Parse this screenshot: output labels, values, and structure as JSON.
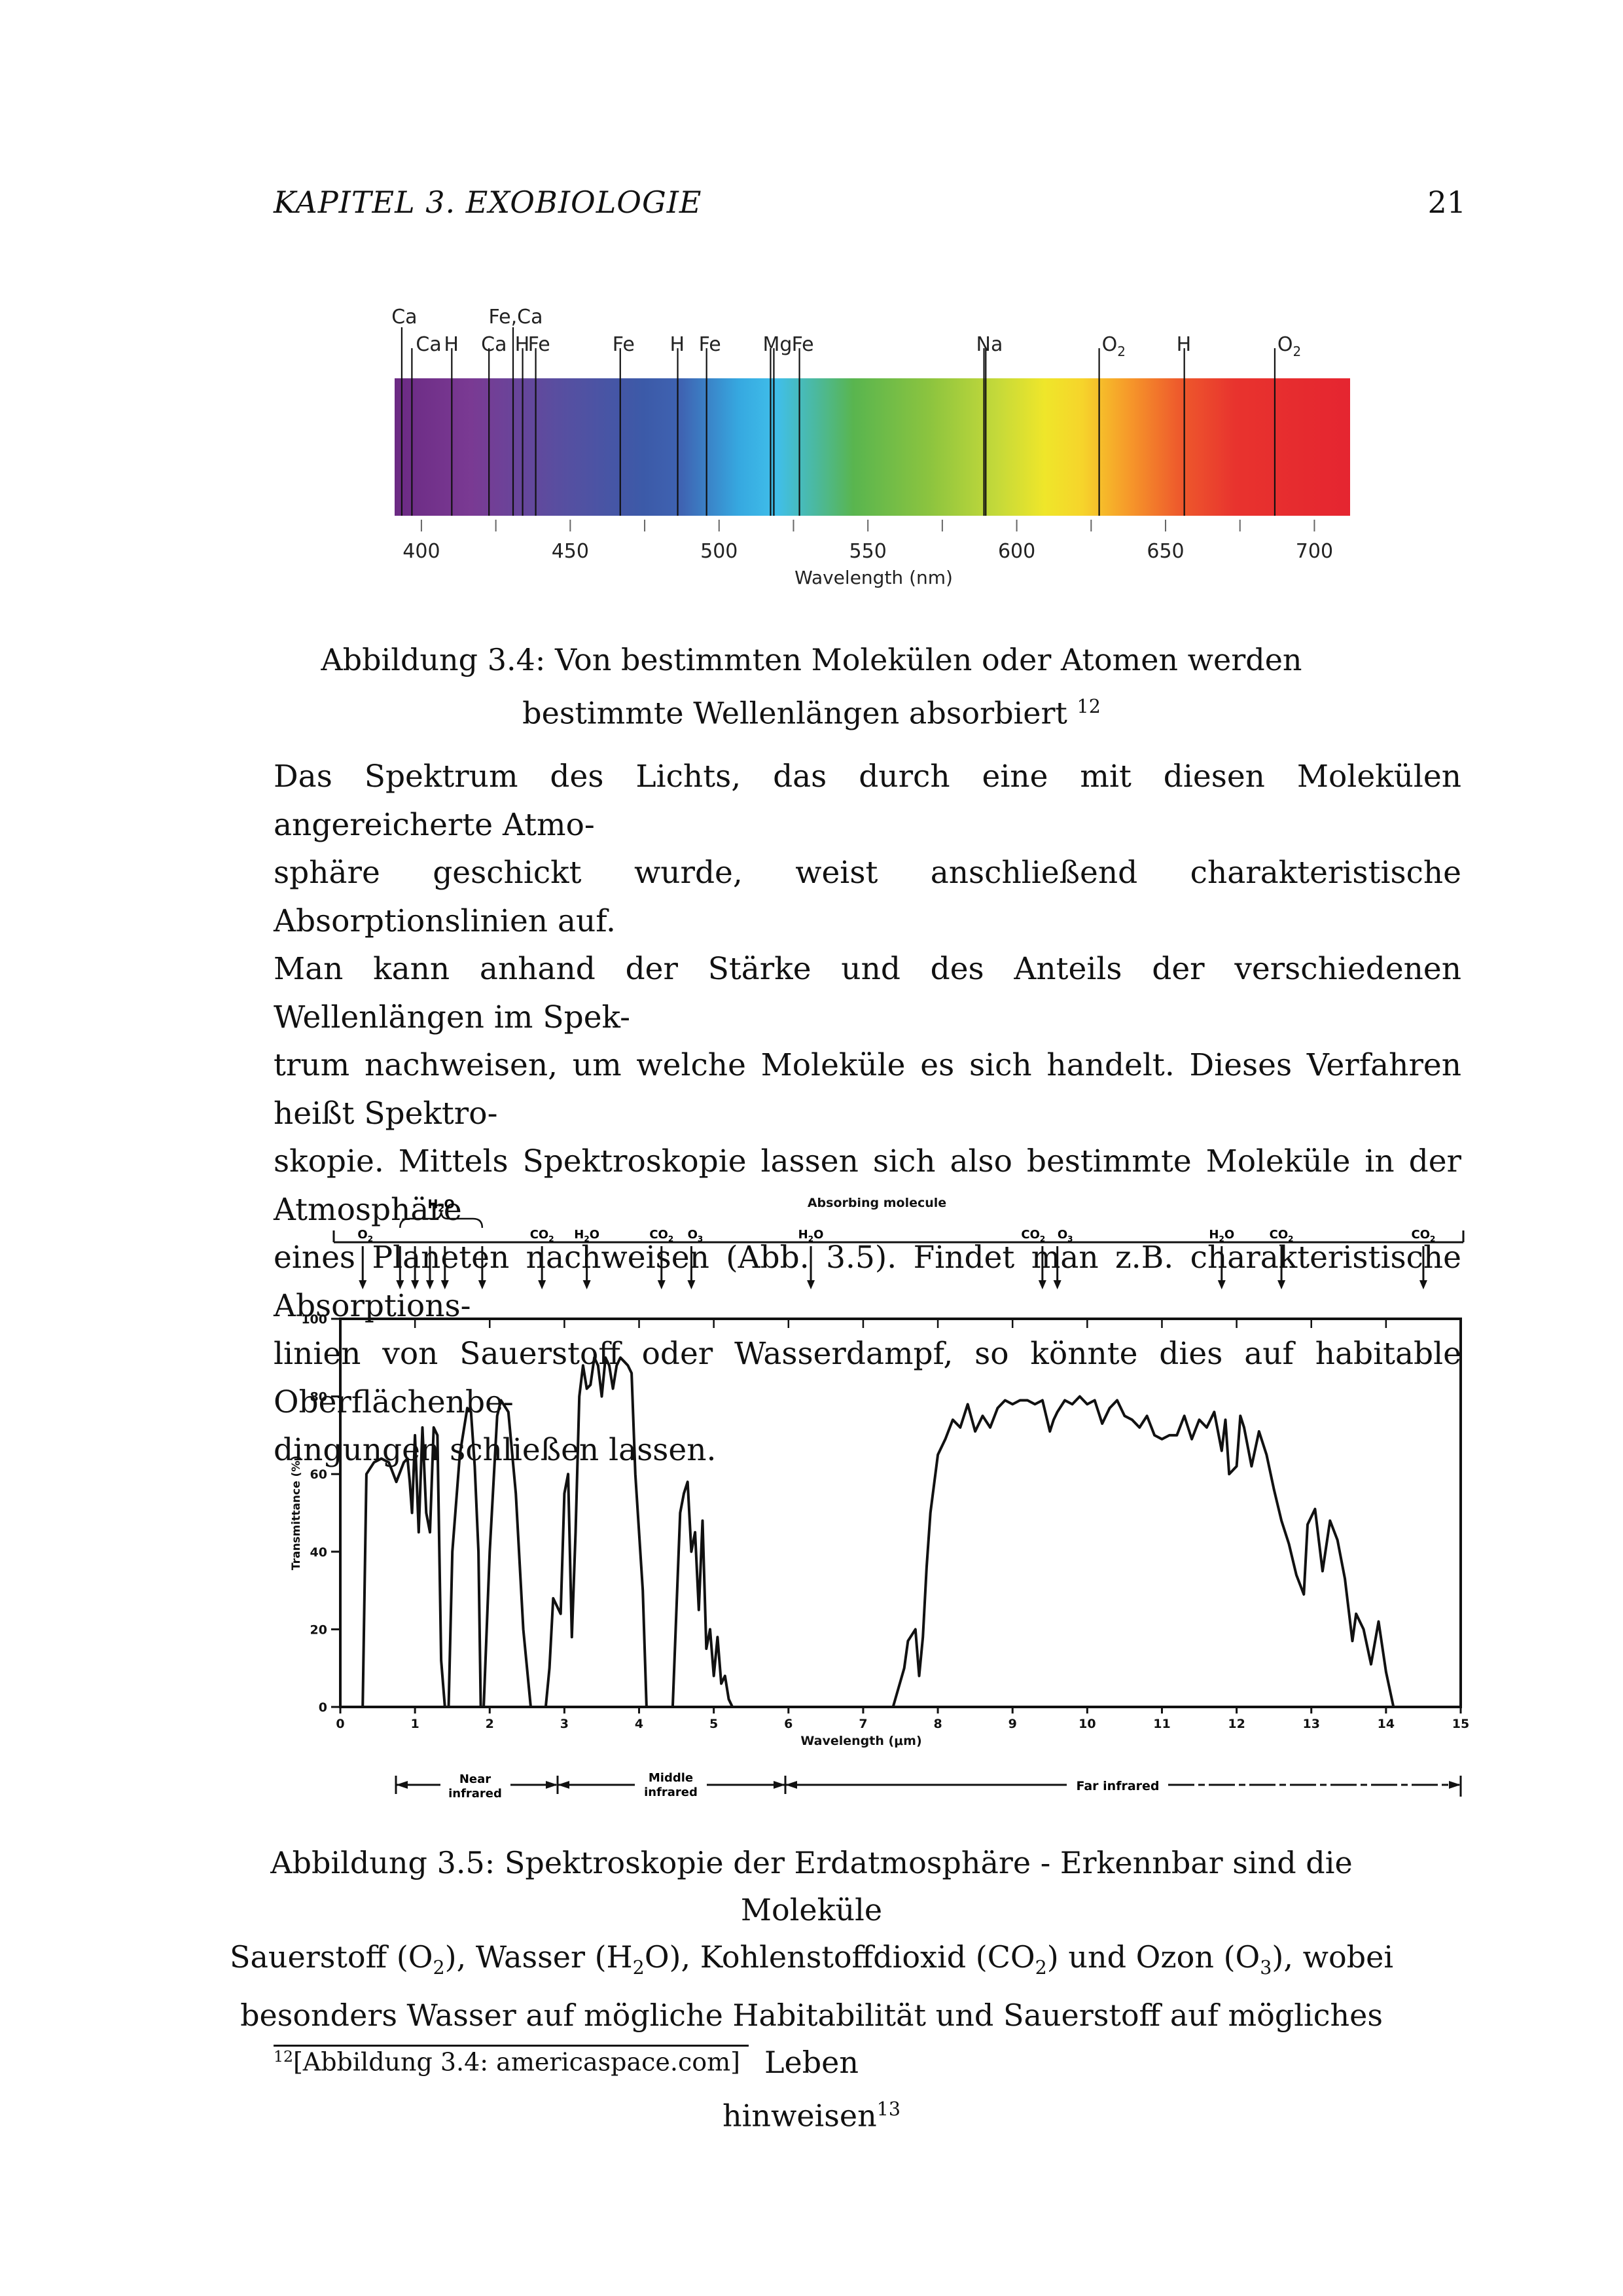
{
  "header": {
    "chapter": "KAPITEL 3.  EXOBIOLOGIE",
    "page_number": "21"
  },
  "figure1": {
    "tick_labels": [
      "400",
      "450",
      "500",
      "550",
      "600",
      "650",
      "700"
    ],
    "xlabel": "Wavelength (nm)",
    "caption_line1": "Abbildung 3.4: Von bestimmten Molekülen oder Atomen werden",
    "caption_line2": "bestimmte Wellenlängen absorbiert",
    "caption_ref": "12"
  },
  "paragraph": {
    "lines": [
      "Das Spektrum des Lichts, das durch eine mit diesen Molekülen angereicherte Atmo-",
      "sphäre geschickt wurde, weist anschließend charakteristische Absorptionslinien auf.",
      "Man kann anhand der Stärke und des Anteils der verschiedenen Wellenlängen im Spek-",
      "trum nachweisen, um welche Moleküle es sich handelt. Dieses Verfahren heißt Spektro-",
      "skopie. Mittels Spektroskopie lassen sich also bestimmte Moleküle in der Atmosphäre",
      "eines Planeten nachweisen (Abb. 3.5). Findet man z.B. charakteristische Absorptions-",
      "linien von Sauerstoff oder Wasserdampf, so könnte dies auf habitable Oberflächenbe-",
      "dingungen schließen lassen."
    ]
  },
  "figure2": {
    "absorbing_title": "Absorbing molecule",
    "near_label": [
      "Near",
      "infrared"
    ],
    "middle_label": [
      "Middle",
      "infrared"
    ],
    "far_label": "Far infrared",
    "caption_lines": [
      "Abbildung 3.5: Spektroskopie der Erdatmosphäre - Erkennbar sind die Moleküle",
      "besonders Wasser auf mögliche Habitabilität und Sauerstoff auf mögliches Leben",
      "hinweisen"
    ],
    "caption_line2_parts": [
      "Sauerstoff (O",
      "2",
      "), Wasser (H",
      "2",
      "O), Kohlenstoffdioxid (CO",
      "2",
      ") und Ozon (O",
      "3",
      "), wobei"
    ],
    "caption_ref": "13"
  },
  "footnote": {
    "mark": "12",
    "text": "[Abbildung 3.4: americaspace.com]"
  },
  "chart_data": [
    {
      "type": "line",
      "description_kind": "spectrum",
      "x_range": [
        391,
        712
      ],
      "xlabel": "Wavelength (nm)",
      "xticks": [
        400,
        450,
        500,
        550,
        600,
        650,
        700
      ],
      "absorption_lines": [
        {
          "label": "Ca",
          "nm": 393.4
        },
        {
          "label": "Ca",
          "nm": 396.8
        },
        {
          "label": "H",
          "nm": 410.2
        },
        {
          "label": "Ca",
          "nm": 422.7
        },
        {
          "label": "Fe,Ca",
          "nm": 430.8
        },
        {
          "label": "H",
          "nm": 434.0
        },
        {
          "label": "Fe",
          "nm": 438.4
        },
        {
          "label": "Fe",
          "nm": 466.8
        },
        {
          "label": "H",
          "nm": 486.1
        },
        {
          "label": "Fe",
          "nm": 495.8
        },
        {
          "label": "Mg",
          "nm": 517.3
        },
        {
          "label": "Mg",
          "nm": 518.4
        },
        {
          "label": "Fe",
          "nm": 527.0
        },
        {
          "label": "Na",
          "nm": 589.0
        },
        {
          "label": "Na",
          "nm": 589.6
        },
        {
          "label": "O2",
          "nm": 627.7
        },
        {
          "label": "H",
          "nm": 656.3
        },
        {
          "label": "O2",
          "nm": 686.7
        }
      ]
    },
    {
      "type": "line",
      "xlabel": "Wavelength (μm)",
      "ylabel": "Transmittance (%)",
      "xlim": [
        0,
        15
      ],
      "ylim": [
        0,
        100
      ],
      "xticks": [
        0,
        1,
        2,
        3,
        4,
        5,
        6,
        7,
        8,
        9,
        10,
        11,
        12,
        13,
        14,
        15
      ],
      "yticks": [
        0,
        20,
        40,
        60,
        80,
        100
      ],
      "absorbing_molecules": [
        {
          "label": "O2",
          "x": 0.3
        },
        {
          "label": "H2O",
          "x": 0.8
        },
        {
          "label": "H2O",
          "x": 1.0
        },
        {
          "label": "H2O",
          "x": 1.2
        },
        {
          "label": "H2O",
          "x": 1.4
        },
        {
          "label": "H2O",
          "x": 1.9
        },
        {
          "label": "CO2",
          "x": 2.7
        },
        {
          "label": "H2O",
          "x": 3.3
        },
        {
          "label": "CO2",
          "x": 4.3
        },
        {
          "label": "O3",
          "x": 4.7
        },
        {
          "label": "H2O",
          "x": 6.3
        },
        {
          "label": "CO2",
          "x": 9.4
        },
        {
          "label": "O3",
          "x": 9.6
        },
        {
          "label": "H2O",
          "x": 11.8
        },
        {
          "label": "CO2",
          "x": 12.6
        },
        {
          "label": "CO2",
          "x": 14.5
        }
      ],
      "series": [
        {
          "x": [
            0.3,
            0.35,
            0.45,
            0.55,
            0.65,
            0.75,
            0.85,
            0.9,
            0.93,
            0.96,
            1.0,
            1.05,
            1.1,
            1.15,
            1.2,
            1.25,
            1.3,
            1.35,
            1.4,
            1.45,
            1.5,
            1.6,
            1.7,
            1.75,
            1.8,
            1.85,
            1.88,
            1.92,
            2.0,
            2.1,
            2.15,
            2.25,
            2.35,
            2.45,
            2.55,
            2.65,
            2.75,
            2.8,
            2.85,
            2.95,
            3.0,
            3.05,
            3.1,
            3.15,
            3.2,
            3.25,
            3.3,
            3.35,
            3.4,
            3.45,
            3.5,
            3.55,
            3.6,
            3.65,
            3.7,
            3.75,
            3.8,
            3.85,
            3.9,
            3.95,
            4.05,
            4.1,
            4.2,
            4.25,
            4.3,
            4.45,
            4.55,
            4.6,
            4.65,
            4.7,
            4.75,
            4.8,
            4.85,
            4.9,
            4.95,
            5.0,
            5.05,
            5.1,
            5.15,
            5.2,
            5.25,
            5.35,
            5.45,
            7.4,
            7.55,
            7.6,
            7.7,
            7.75,
            7.8,
            7.85,
            7.9,
            8.0,
            8.1,
            8.2,
            8.3,
            8.4,
            8.5,
            8.6,
            8.7,
            8.8,
            8.9,
            9.0,
            9.1,
            9.2,
            9.3,
            9.4,
            9.5,
            9.55,
            9.6,
            9.7,
            9.8,
            9.9,
            10.0,
            10.1,
            10.2,
            10.3,
            10.4,
            10.5,
            10.6,
            10.7,
            10.8,
            10.9,
            11.0,
            11.1,
            11.2,
            11.3,
            11.4,
            11.5,
            11.6,
            11.7,
            11.8,
            11.85,
            11.9,
            12.0,
            12.05,
            12.1,
            12.2,
            12.3,
            12.4,
            12.5,
            12.6,
            12.7,
            12.8,
            12.9,
            12.95,
            13.05,
            13.15,
            13.25,
            13.35,
            13.45,
            13.55,
            13.6,
            13.7,
            13.8,
            13.9,
            14.0,
            14.1
          ],
          "y": [
            0,
            60,
            63,
            64,
            63,
            58,
            63,
            64,
            58,
            50,
            70,
            45,
            72,
            50,
            45,
            72,
            70,
            12,
            0,
            0,
            40,
            65,
            77,
            76,
            62,
            40,
            0,
            0,
            40,
            75,
            79,
            76,
            55,
            20,
            0,
            0,
            0,
            10,
            28,
            24,
            55,
            60,
            18,
            45,
            80,
            88,
            82,
            83,
            90,
            88,
            80,
            90,
            88,
            82,
            88,
            90,
            89,
            88,
            86,
            60,
            30,
            0,
            0,
            0,
            0,
            0,
            50,
            55,
            58,
            40,
            45,
            25,
            48,
            15,
            20,
            8,
            18,
            6,
            8,
            2,
            0,
            0,
            0,
            0,
            10,
            17,
            20,
            8,
            18,
            36,
            50,
            65,
            69,
            74,
            72,
            78,
            71,
            75,
            72,
            77,
            79,
            78,
            79,
            79,
            78,
            79,
            71,
            74,
            76,
            79,
            78,
            80,
            78,
            79,
            73,
            77,
            79,
            75,
            74,
            72,
            75,
            70,
            69,
            70,
            70,
            75,
            69,
            74,
            72,
            76,
            66,
            74,
            60,
            62,
            75,
            72,
            62,
            71,
            65,
            56,
            48,
            42,
            34,
            29,
            47,
            51,
            35,
            48,
            43,
            33,
            17,
            24,
            20,
            11,
            22,
            9,
            0
          ]
        }
      ]
    }
  ]
}
